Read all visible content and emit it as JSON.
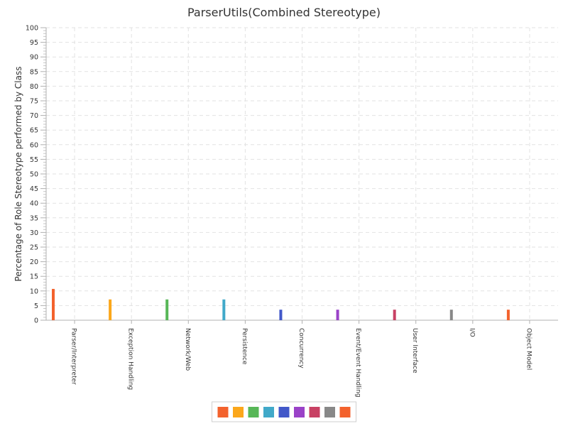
{
  "chart_data": {
    "type": "bar",
    "title": "ParserUtils(Combined Stereotype)",
    "xlabel": "",
    "ylabel": "Percentage of Role Stereotype performed by Class",
    "ylim": [
      0,
      100
    ],
    "ytick_step": 5,
    "grid": true,
    "legend_position": "bottom",
    "categories": [
      "Parser/Interpreter",
      "Exception Handling",
      "Network/Web",
      "Persistence",
      "Concurrency",
      "Event/Event Handling",
      "User Interface",
      "I/O",
      "Object Model"
    ],
    "values": [
      10.7,
      7.1,
      7.1,
      7.1,
      3.6,
      3.6,
      3.6,
      3.6,
      3.6
    ],
    "colors": [
      "#f3622d",
      "#fba71b",
      "#57b757",
      "#41a9c9",
      "#4258c9",
      "#9a42c8",
      "#c84164",
      "#888888",
      "#f3622d"
    ]
  }
}
